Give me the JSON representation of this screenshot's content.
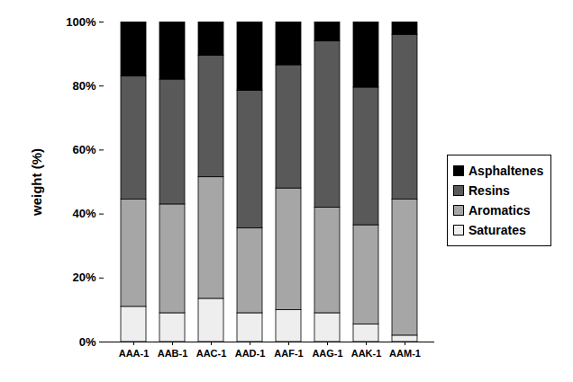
{
  "chart_data": {
    "type": "bar",
    "stacked": true,
    "y_label": "weight (%)",
    "categories": [
      "AAA-1",
      "AAB-1",
      "AAC-1",
      "AAD-1",
      "AAF-1",
      "AAG-1",
      "AAK-1",
      "AAM-1"
    ],
    "series": [
      {
        "name": "Saturates",
        "color": "#eeeeee",
        "values": [
          11,
          9,
          13.5,
          9,
          10,
          9,
          5.5,
          2
        ]
      },
      {
        "name": "Aromatics",
        "color": "#a6a6a6",
        "values": [
          33.5,
          34,
          38,
          26.5,
          38,
          33,
          31,
          42.5
        ]
      },
      {
        "name": "Resins",
        "color": "#595959",
        "values": [
          38.5,
          39,
          38,
          43,
          38.5,
          52,
          43,
          51.5
        ]
      },
      {
        "name": "Asphaltenes",
        "color": "#000000",
        "values": [
          17,
          18,
          10.5,
          21.5,
          13.5,
          6,
          20.5,
          4
        ]
      }
    ],
    "ylim": [
      0,
      100
    ],
    "yticks": [
      {
        "value": 0,
        "label": "0%"
      },
      {
        "value": 20,
        "label": "20%"
      },
      {
        "value": 40,
        "label": "40%"
      },
      {
        "value": 60,
        "label": "60%"
      },
      {
        "value": 80,
        "label": "80%"
      },
      {
        "value": 100,
        "label": "100%"
      }
    ],
    "grid": false,
    "legend": "right"
  }
}
